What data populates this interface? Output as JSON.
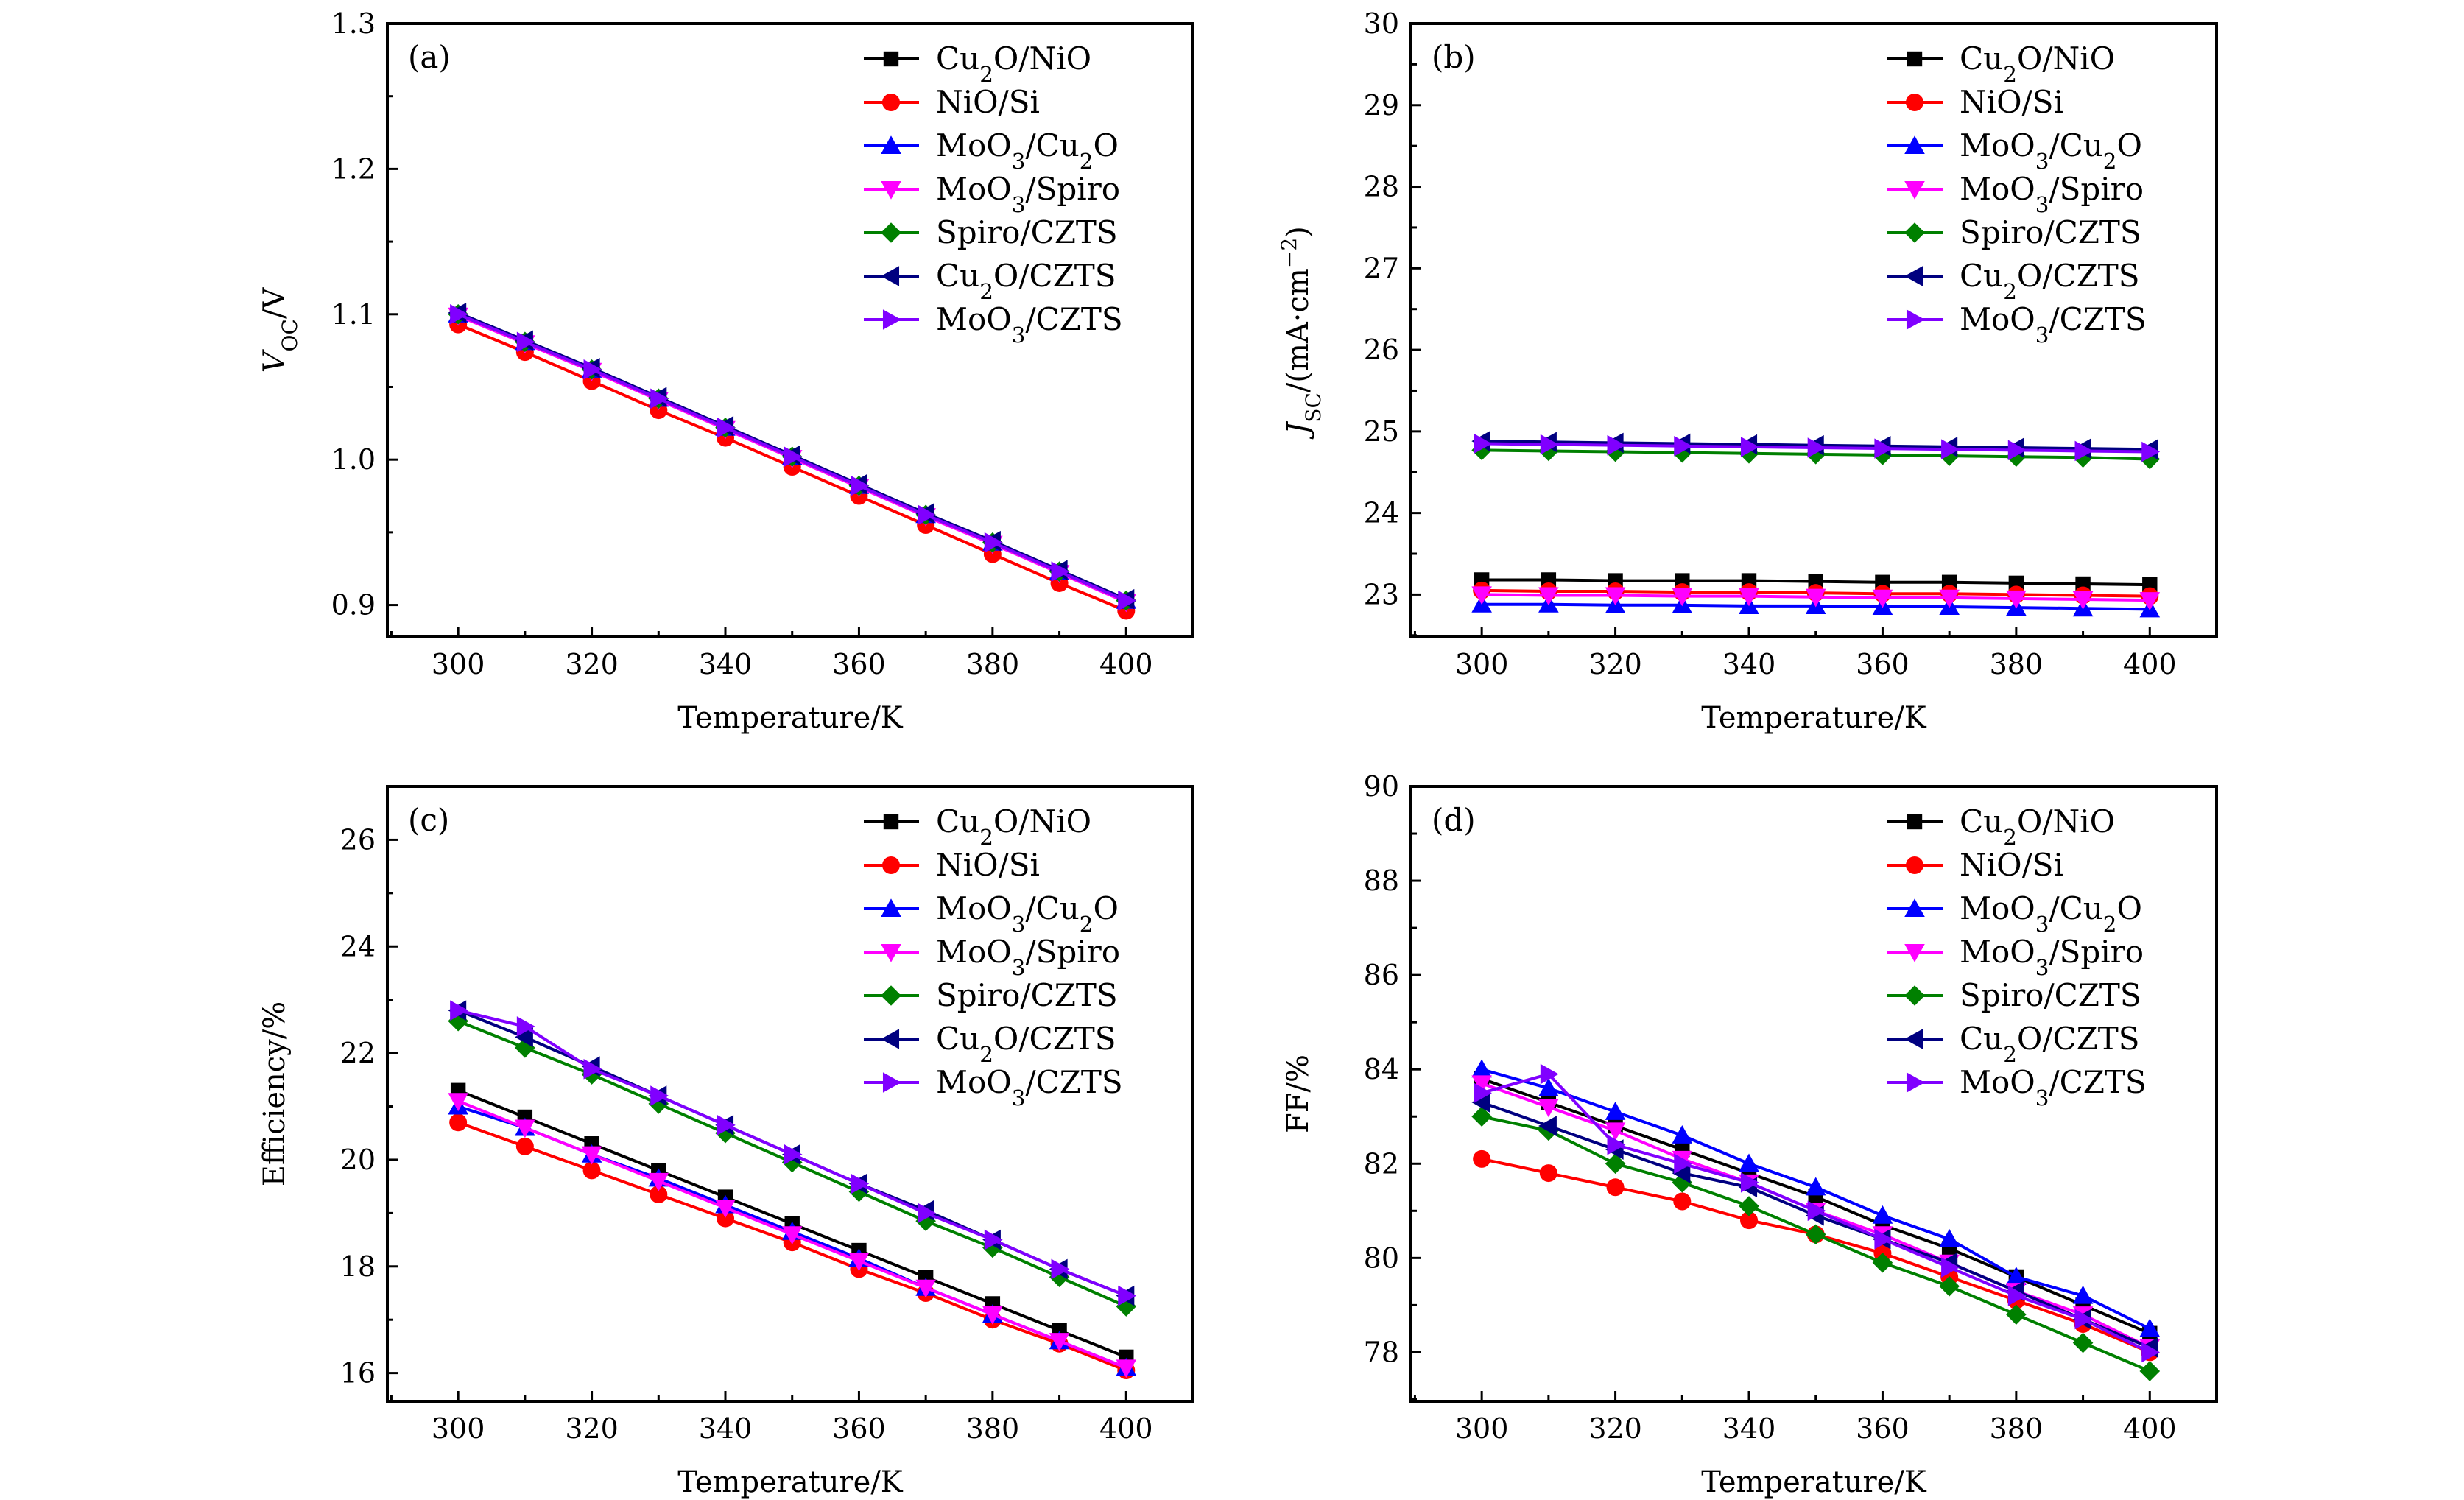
{
  "chart_data": [
    {
      "type": "line",
      "panel_label": "(a)",
      "xlabel": "Temperature/K",
      "ylabel": {
        "main": "V",
        "sub": "OC",
        "rest": "/V",
        "sup": ""
      },
      "xlim": [
        289.4,
        410
      ],
      "ylim": [
        0.878,
        1.3
      ],
      "xticks": [
        300,
        320,
        340,
        360,
        380,
        400
      ],
      "yticks": [
        0.9,
        1.0,
        1.1,
        1.2,
        1.3
      ],
      "ytick_labels": [
        "0.9",
        "1.0",
        "1.1",
        "1.2",
        "1.3"
      ],
      "legend": "top-right",
      "x": [
        300,
        310,
        320,
        330,
        340,
        350,
        360,
        370,
        380,
        390,
        400
      ],
      "series": [
        {
          "name": "Cu2O/NiO",
          "values": [
            1.1,
            1.081,
            1.062,
            1.042,
            1.022,
            1.002,
            0.982,
            0.962,
            0.943,
            0.923,
            0.903
          ]
        },
        {
          "name": "NiO/Si",
          "values": [
            1.093,
            1.074,
            1.054,
            1.034,
            1.015,
            0.995,
            0.975,
            0.955,
            0.935,
            0.915,
            0.896
          ]
        },
        {
          "name": "MoO3/Cu2O",
          "values": [
            1.1,
            1.081,
            1.062,
            1.042,
            1.022,
            1.002,
            0.982,
            0.962,
            0.943,
            0.923,
            0.903
          ]
        },
        {
          "name": "MoO3/Spiro",
          "values": [
            1.099,
            1.08,
            1.061,
            1.041,
            1.021,
            1.001,
            0.981,
            0.961,
            0.942,
            0.922,
            0.902
          ]
        },
        {
          "name": "Spiro/CZTS",
          "values": [
            1.1,
            1.081,
            1.062,
            1.042,
            1.022,
            1.002,
            0.982,
            0.962,
            0.943,
            0.923,
            0.903
          ]
        },
        {
          "name": "Cu2O/CZTS",
          "values": [
            1.101,
            1.082,
            1.063,
            1.043,
            1.023,
            1.003,
            0.983,
            0.963,
            0.944,
            0.924,
            0.904
          ]
        },
        {
          "name": "MoO3/CZTS",
          "values": [
            1.1,
            1.081,
            1.062,
            1.042,
            1.022,
            1.002,
            0.982,
            0.962,
            0.943,
            0.923,
            0.903
          ]
        }
      ]
    },
    {
      "type": "line",
      "panel_label": "(b)",
      "xlabel": "Temperature/K",
      "ylabel": {
        "main": "J",
        "sub": "SC",
        "rest": "/(mA·cm",
        "sup": "−2",
        "close": ")"
      },
      "xlim": [
        289.4,
        410
      ],
      "ylim": [
        22.48,
        30
      ],
      "xticks": [
        300,
        320,
        340,
        360,
        380,
        400
      ],
      "yticks": [
        23,
        24,
        25,
        26,
        27,
        28,
        29,
        30
      ],
      "ytick_labels": [
        "23",
        "24",
        "25",
        "26",
        "27",
        "28",
        "29",
        "30"
      ],
      "legend": "top-right",
      "x": [
        300,
        310,
        320,
        330,
        340,
        350,
        360,
        370,
        380,
        390,
        400
      ],
      "series": [
        {
          "name": "Cu2O/NiO",
          "values": [
            23.18,
            23.18,
            23.17,
            23.17,
            23.17,
            23.16,
            23.15,
            23.15,
            23.14,
            23.13,
            23.12
          ]
        },
        {
          "name": "NiO/Si",
          "values": [
            23.05,
            23.04,
            23.04,
            23.03,
            23.03,
            23.02,
            23.01,
            23.01,
            23.0,
            22.99,
            22.98
          ]
        },
        {
          "name": "MoO3/Cu2O",
          "values": [
            22.88,
            22.88,
            22.87,
            22.87,
            22.86,
            22.86,
            22.85,
            22.85,
            22.84,
            22.83,
            22.82
          ]
        },
        {
          "name": "MoO3/Spiro",
          "values": [
            23.0,
            22.99,
            22.99,
            22.98,
            22.98,
            22.97,
            22.96,
            22.96,
            22.95,
            22.94,
            22.93
          ]
        },
        {
          "name": "Spiro/CZTS",
          "values": [
            24.77,
            24.76,
            24.75,
            24.74,
            24.73,
            24.72,
            24.71,
            24.7,
            24.69,
            24.68,
            24.66
          ]
        },
        {
          "name": "Cu2O/CZTS",
          "values": [
            24.88,
            24.87,
            24.86,
            24.85,
            24.84,
            24.83,
            24.82,
            24.81,
            24.8,
            24.79,
            24.78
          ]
        },
        {
          "name": "MoO3/CZTS",
          "values": [
            24.85,
            24.84,
            24.83,
            24.82,
            24.81,
            24.8,
            24.79,
            24.78,
            24.77,
            24.76,
            24.75
          ]
        }
      ]
    },
    {
      "type": "line",
      "panel_label": "(c)",
      "xlabel": "Temperature/K",
      "ylabel": {
        "main": "Efficiency/%",
        "sub": "",
        "rest": "",
        "sup": ""
      },
      "xlim": [
        289.4,
        410
      ],
      "ylim": [
        15.47,
        27.0
      ],
      "xticks": [
        300,
        320,
        340,
        360,
        380,
        400
      ],
      "yticks": [
        16,
        18,
        20,
        22,
        24,
        26
      ],
      "ytick_labels": [
        "16",
        "18",
        "20",
        "22",
        "24",
        "26"
      ],
      "legend": "top-right",
      "x": [
        300,
        310,
        320,
        330,
        340,
        350,
        360,
        370,
        380,
        390,
        400
      ],
      "series": [
        {
          "name": "Cu2O/NiO",
          "values": [
            21.3,
            20.8,
            20.3,
            19.8,
            19.3,
            18.8,
            18.3,
            17.8,
            17.3,
            16.8,
            16.3
          ]
        },
        {
          "name": "NiO/Si",
          "values": [
            20.7,
            20.25,
            19.8,
            19.35,
            18.9,
            18.45,
            17.95,
            17.5,
            17.0,
            16.55,
            16.05
          ]
        },
        {
          "name": "MoO3/Cu2O",
          "values": [
            21.0,
            20.6,
            20.1,
            19.65,
            19.15,
            18.65,
            18.15,
            17.6,
            17.1,
            16.6,
            16.1
          ]
        },
        {
          "name": "MoO3/Spiro",
          "values": [
            21.1,
            20.6,
            20.1,
            19.6,
            19.1,
            18.6,
            18.1,
            17.6,
            17.1,
            16.6,
            16.1
          ]
        },
        {
          "name": "Spiro/CZTS",
          "values": [
            22.6,
            22.1,
            21.6,
            21.05,
            20.5,
            19.95,
            19.4,
            18.85,
            18.35,
            17.8,
            17.25
          ]
        },
        {
          "name": "Cu2O/CZTS",
          "values": [
            22.8,
            22.3,
            21.75,
            21.2,
            20.65,
            20.1,
            19.55,
            19.05,
            18.5,
            17.95,
            17.45
          ]
        },
        {
          "name": "MoO3/CZTS",
          "values": [
            22.8,
            22.5,
            21.7,
            21.2,
            20.65,
            20.1,
            19.55,
            19.0,
            18.5,
            17.95,
            17.45
          ]
        }
      ]
    },
    {
      "type": "line",
      "panel_label": "(d)",
      "xlabel": "Temperature/K",
      "ylabel": {
        "main": "FF/%",
        "sub": "",
        "rest": "",
        "sup": ""
      },
      "xlim": [
        289.4,
        410
      ],
      "ylim": [
        76.96,
        90
      ],
      "xticks": [
        300,
        320,
        340,
        360,
        380,
        400
      ],
      "yticks": [
        78,
        80,
        82,
        84,
        86,
        88,
        90
      ],
      "ytick_labels": [
        "78",
        "80",
        "82",
        "84",
        "86",
        "88",
        "90"
      ],
      "legend": "top-right",
      "x": [
        300,
        310,
        320,
        330,
        340,
        350,
        360,
        370,
        380,
        390,
        400
      ],
      "series": [
        {
          "name": "Cu2O/NiO",
          "values": [
            83.8,
            83.3,
            82.8,
            82.3,
            81.8,
            81.3,
            80.7,
            80.2,
            79.6,
            79.0,
            78.4
          ]
        },
        {
          "name": "NiO/Si",
          "values": [
            82.1,
            81.8,
            81.5,
            81.2,
            80.8,
            80.5,
            80.1,
            79.6,
            79.1,
            78.6,
            78.0
          ]
        },
        {
          "name": "MoO3/Cu2O",
          "values": [
            84.0,
            83.6,
            83.1,
            82.6,
            82.0,
            81.5,
            80.9,
            80.4,
            79.6,
            79.2,
            78.5
          ]
        },
        {
          "name": "MoO3/Spiro",
          "values": [
            83.7,
            83.2,
            82.7,
            82.1,
            81.6,
            81.0,
            80.5,
            79.9,
            79.3,
            78.8,
            78.1
          ]
        },
        {
          "name": "Spiro/CZTS",
          "values": [
            83.0,
            82.7,
            82.0,
            81.6,
            81.1,
            80.5,
            79.9,
            79.4,
            78.8,
            78.2,
            77.6
          ]
        },
        {
          "name": "Cu2O/CZTS",
          "values": [
            83.3,
            82.8,
            82.3,
            81.8,
            81.5,
            80.9,
            80.4,
            79.9,
            79.3,
            78.7,
            78.1
          ]
        },
        {
          "name": "MoO3/CZTS",
          "values": [
            83.5,
            83.9,
            82.4,
            82.0,
            81.6,
            81.0,
            80.4,
            79.8,
            79.2,
            78.7,
            78.0
          ]
        }
      ]
    }
  ],
  "series_styles": [
    {
      "color": "#000000",
      "marker": "square"
    },
    {
      "color": "#ff0000",
      "marker": "circle"
    },
    {
      "color": "#0000ff",
      "marker": "triangle-up"
    },
    {
      "color": "#ff00ff",
      "marker": "triangle-down"
    },
    {
      "color": "#008000",
      "marker": "diamond"
    },
    {
      "color": "#000080",
      "marker": "triangle-left"
    },
    {
      "color": "#8000ff",
      "marker": "triangle-right"
    }
  ]
}
